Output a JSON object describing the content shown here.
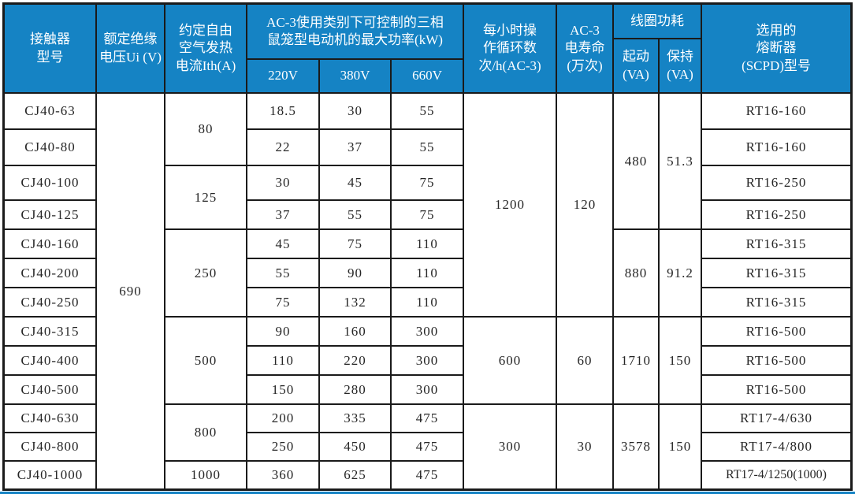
{
  "meta": {
    "accent_blue": "#1583c4",
    "border_dark": "#1a1a1a",
    "header_text_color": "#ffffff",
    "body_text_color": "#262626"
  },
  "table": {
    "description_visible_title": "",
    "header_cells": [
      {
        "name": "col-header-model",
        "text": "接触器\n型号",
        "r": 1,
        "c": 1,
        "rs": 3,
        "cs": 1
      },
      {
        "name": "col-header-rated-insulation-voltage",
        "text": "额定绝缘\n电压Ui (V)",
        "r": 1,
        "c": 2,
        "rs": 3,
        "cs": 1
      },
      {
        "name": "col-header-thermal-current",
        "text": "约定自由\n空气发热\n电流Ith(A)",
        "r": 1,
        "c": 3,
        "rs": 3,
        "cs": 1
      },
      {
        "name": "group-header-ac3-max-power",
        "text": "AC-3使用类别下可控制的三相\n鼠笼型电动机的最大功率(kW)",
        "r": 1,
        "c": 4,
        "rs": 2,
        "cs": 3
      },
      {
        "name": "col-header-220v",
        "text": "220V",
        "r": 3,
        "c": 4,
        "rs": 1,
        "cs": 1
      },
      {
        "name": "col-header-380v",
        "text": "380V",
        "r": 3,
        "c": 5,
        "rs": 1,
        "cs": 1
      },
      {
        "name": "col-header-660v",
        "text": "660V",
        "r": 3,
        "c": 6,
        "rs": 1,
        "cs": 1
      },
      {
        "name": "col-header-operating-cycles",
        "text": "每小时操\n作循环数\n次/h(AC-3)",
        "r": 1,
        "c": 7,
        "rs": 3,
        "cs": 1
      },
      {
        "name": "col-header-electrical-life",
        "text": "AC-3\n电寿命\n(万次)",
        "r": 1,
        "c": 8,
        "rs": 3,
        "cs": 1
      },
      {
        "name": "group-header-coil-consumption",
        "text": "线圈功耗",
        "r": 1,
        "c": 9,
        "rs": 1,
        "cs": 2
      },
      {
        "name": "col-header-coil-start",
        "text": "起动\n(VA)",
        "r": 2,
        "c": 9,
        "rs": 2,
        "cs": 1
      },
      {
        "name": "col-header-coil-hold",
        "text": "保持\n(VA)",
        "r": 2,
        "c": 10,
        "rs": 2,
        "cs": 1
      },
      {
        "name": "col-header-fuse",
        "text": "选用的\n熔断器\n(SCPD)型号",
        "r": 1,
        "c": 11,
        "rs": 3,
        "cs": 1
      }
    ],
    "body_cells": [
      {
        "text": "CJ40-63",
        "r": 4,
        "c": 1
      },
      {
        "text": "CJ40-80",
        "r": 5,
        "c": 1
      },
      {
        "text": "CJ40-100",
        "r": 6,
        "c": 1
      },
      {
        "text": "CJ40-125",
        "r": 7,
        "c": 1
      },
      {
        "text": "CJ40-160",
        "r": 8,
        "c": 1
      },
      {
        "text": "CJ40-200",
        "r": 9,
        "c": 1
      },
      {
        "text": "CJ40-250",
        "r": 10,
        "c": 1
      },
      {
        "text": "CJ40-315",
        "r": 11,
        "c": 1
      },
      {
        "text": "CJ40-400",
        "r": 12,
        "c": 1
      },
      {
        "text": "CJ40-500",
        "r": 13,
        "c": 1
      },
      {
        "text": "CJ40-630",
        "r": 14,
        "c": 1
      },
      {
        "text": "CJ40-800",
        "r": 15,
        "c": 1
      },
      {
        "text": "CJ40-1000",
        "r": 16,
        "c": 1
      },
      {
        "text": "690",
        "r": 4,
        "c": 2,
        "rs": 13
      },
      {
        "text": "80",
        "r": 4,
        "c": 3,
        "rs": 2
      },
      {
        "text": "125",
        "r": 6,
        "c": 3,
        "rs": 2
      },
      {
        "text": "250",
        "r": 8,
        "c": 3,
        "rs": 3
      },
      {
        "text": "500",
        "r": 11,
        "c": 3,
        "rs": 3
      },
      {
        "text": "800",
        "r": 14,
        "c": 3,
        "rs": 2
      },
      {
        "text": "1000",
        "r": 16,
        "c": 3
      },
      {
        "text": "18.5",
        "r": 4,
        "c": 4
      },
      {
        "text": "22",
        "r": 5,
        "c": 4
      },
      {
        "text": "30",
        "r": 6,
        "c": 4
      },
      {
        "text": "37",
        "r": 7,
        "c": 4
      },
      {
        "text": "45",
        "r": 8,
        "c": 4
      },
      {
        "text": "55",
        "r": 9,
        "c": 4
      },
      {
        "text": "75",
        "r": 10,
        "c": 4
      },
      {
        "text": "90",
        "r": 11,
        "c": 4
      },
      {
        "text": "110",
        "r": 12,
        "c": 4
      },
      {
        "text": "150",
        "r": 13,
        "c": 4
      },
      {
        "text": "200",
        "r": 14,
        "c": 4
      },
      {
        "text": "250",
        "r": 15,
        "c": 4
      },
      {
        "text": "360",
        "r": 16,
        "c": 4
      },
      {
        "text": "30",
        "r": 4,
        "c": 5
      },
      {
        "text": "37",
        "r": 5,
        "c": 5
      },
      {
        "text": "45",
        "r": 6,
        "c": 5
      },
      {
        "text": "55",
        "r": 7,
        "c": 5
      },
      {
        "text": "75",
        "r": 8,
        "c": 5
      },
      {
        "text": "90",
        "r": 9,
        "c": 5
      },
      {
        "text": "132",
        "r": 10,
        "c": 5
      },
      {
        "text": "160",
        "r": 11,
        "c": 5
      },
      {
        "text": "220",
        "r": 12,
        "c": 5
      },
      {
        "text": "280",
        "r": 13,
        "c": 5
      },
      {
        "text": "335",
        "r": 14,
        "c": 5
      },
      {
        "text": "450",
        "r": 15,
        "c": 5
      },
      {
        "text": "625",
        "r": 16,
        "c": 5
      },
      {
        "text": "55",
        "r": 4,
        "c": 6
      },
      {
        "text": "55",
        "r": 5,
        "c": 6
      },
      {
        "text": "75",
        "r": 6,
        "c": 6
      },
      {
        "text": "75",
        "r": 7,
        "c": 6
      },
      {
        "text": "110",
        "r": 8,
        "c": 6
      },
      {
        "text": "110",
        "r": 9,
        "c": 6
      },
      {
        "text": "110",
        "r": 10,
        "c": 6
      },
      {
        "text": "300",
        "r": 11,
        "c": 6
      },
      {
        "text": "300",
        "r": 12,
        "c": 6
      },
      {
        "text": "300",
        "r": 13,
        "c": 6
      },
      {
        "text": "475",
        "r": 14,
        "c": 6
      },
      {
        "text": "475",
        "r": 15,
        "c": 6
      },
      {
        "text": "475",
        "r": 16,
        "c": 6
      },
      {
        "text": "1200",
        "r": 4,
        "c": 7,
        "rs": 7
      },
      {
        "text": "600",
        "r": 11,
        "c": 7,
        "rs": 3
      },
      {
        "text": "300",
        "r": 14,
        "c": 7,
        "rs": 3
      },
      {
        "text": "120",
        "r": 4,
        "c": 8,
        "rs": 7
      },
      {
        "text": "60",
        "r": 11,
        "c": 8,
        "rs": 3
      },
      {
        "text": "30",
        "r": 14,
        "c": 8,
        "rs": 3
      },
      {
        "text": "480",
        "r": 4,
        "c": 9,
        "rs": 4
      },
      {
        "text": "880",
        "r": 8,
        "c": 9,
        "rs": 3
      },
      {
        "text": "1710",
        "r": 11,
        "c": 9,
        "rs": 3
      },
      {
        "text": "3578",
        "r": 14,
        "c": 9,
        "rs": 3
      },
      {
        "text": "51.3",
        "r": 4,
        "c": 10,
        "rs": 4
      },
      {
        "text": "91.2",
        "r": 8,
        "c": 10,
        "rs": 3
      },
      {
        "text": "150",
        "r": 11,
        "c": 10,
        "rs": 3
      },
      {
        "text": "150",
        "r": 14,
        "c": 10,
        "rs": 3
      },
      {
        "text": "RT16-160",
        "r": 4,
        "c": 11
      },
      {
        "text": "RT16-160",
        "r": 5,
        "c": 11
      },
      {
        "text": "RT16-250",
        "r": 6,
        "c": 11
      },
      {
        "text": "RT16-250",
        "r": 7,
        "c": 11
      },
      {
        "text": "RT16-315",
        "r": 8,
        "c": 11
      },
      {
        "text": "RT16-315",
        "r": 9,
        "c": 11
      },
      {
        "text": "RT16-315",
        "r": 10,
        "c": 11
      },
      {
        "text": "RT16-500",
        "r": 11,
        "c": 11
      },
      {
        "text": "RT16-500",
        "r": 12,
        "c": 11
      },
      {
        "text": "RT16-500",
        "r": 13,
        "c": 11
      },
      {
        "text": "RT17-4/630",
        "r": 14,
        "c": 11
      },
      {
        "text": "RT17-4/800",
        "r": 15,
        "c": 11
      },
      {
        "text": "RT17-4/1250(1000)",
        "r": 16,
        "c": 11,
        "small": true
      }
    ]
  }
}
